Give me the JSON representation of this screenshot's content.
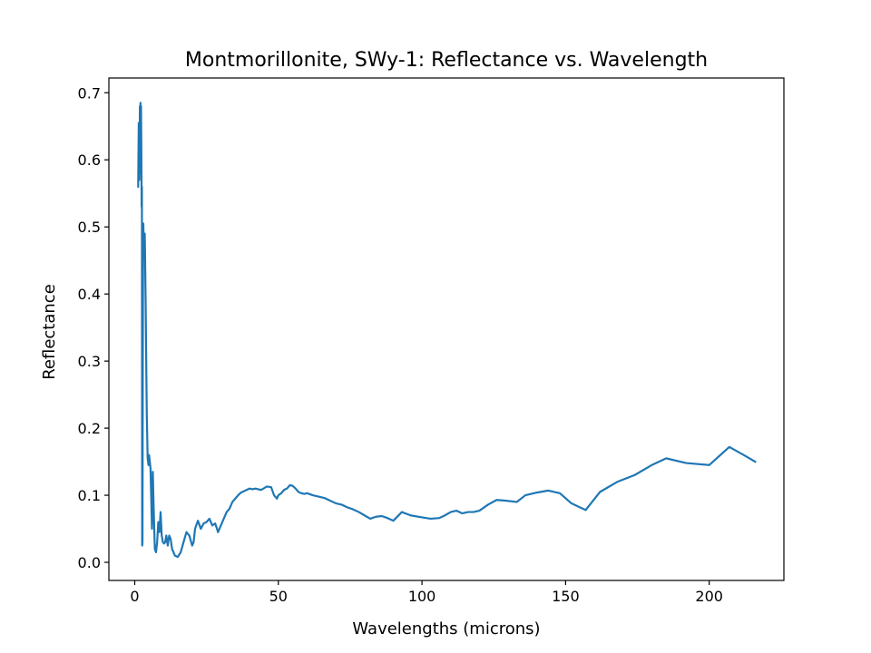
{
  "chart_data": {
    "type": "line",
    "title": "Montmorillonite, SWy-1: Reflectance vs. Wavelength",
    "xlabel": "Wavelengths (microns)",
    "ylabel": "Reflectance",
    "xlim": [
      -9,
      226
    ],
    "ylim": [
      -0.027,
      0.722
    ],
    "xticks": [
      0,
      50,
      100,
      150,
      200
    ],
    "yticks": [
      0.0,
      0.1,
      0.2,
      0.3,
      0.4,
      0.5,
      0.6,
      0.7
    ],
    "xtick_labels": [
      "0",
      "50",
      "100",
      "150",
      "200"
    ],
    "ytick_labels": [
      "0.0",
      "0.1",
      "0.2",
      "0.3",
      "0.4",
      "0.5",
      "0.6",
      "0.7"
    ],
    "grid": false,
    "line_color": "#1f77b4",
    "series": [
      {
        "x": [
          1.2,
          1.4,
          1.6,
          1.8,
          1.9,
          2.0,
          2.1,
          2.2,
          2.3,
          2.4,
          2.5,
          2.6,
          2.7,
          2.8,
          2.9,
          3.0,
          3.2,
          3.5,
          3.8,
          4.0,
          4.2,
          4.5,
          4.8,
          5.0,
          5.5,
          6.0,
          6.3,
          6.6,
          7.0,
          7.4,
          7.8,
          8.2,
          8.6,
          9.0,
          9.4,
          9.8,
          10.2,
          10.6,
          11.0,
          11.5,
          12.0,
          12.5,
          13.0,
          13.5,
          14.0,
          15.0,
          16.0,
          17.0,
          18.0,
          19.0,
          20.0,
          20.5,
          21.0,
          22.0,
          23.0,
          24.0,
          25.0,
          26.0,
          27.0,
          28.0,
          28.5,
          29.0,
          30.0,
          31.0,
          32.0,
          33.0,
          34.0,
          35.0,
          36.0,
          37.0,
          38.0,
          39.0,
          40.0,
          41.0,
          42.0,
          44.0,
          46.0,
          47.5,
          48.5,
          49.5,
          50.0,
          51.0,
          52.0,
          53.0,
          54.0,
          55.0,
          56.0,
          57.0,
          58.0,
          59.0,
          60.0,
          62.0,
          64.0,
          66.0,
          68.0,
          70.0,
          72.0,
          74.0,
          76.0,
          78.0,
          80.0,
          82.0,
          84.0,
          86.0,
          88.0,
          90.0,
          93.0,
          96.0,
          100.0,
          103.0,
          106.0,
          108.0,
          110.0,
          112.0,
          114.0,
          116.0,
          118.0,
          120.0,
          123.0,
          126.0,
          129.0,
          133.0,
          136.0,
          140.0,
          144.0,
          148.0,
          152.0,
          157.0,
          162.0,
          168.0,
          174.0,
          180.0,
          185.0,
          192.0,
          200.0,
          207.0,
          212.0,
          216.0
        ],
        "values": [
          0.56,
          0.655,
          0.57,
          0.68,
          0.6,
          0.685,
          0.58,
          0.68,
          0.62,
          0.53,
          0.56,
          0.025,
          0.03,
          0.28,
          0.45,
          0.505,
          0.46,
          0.49,
          0.39,
          0.3,
          0.22,
          0.155,
          0.145,
          0.16,
          0.14,
          0.05,
          0.135,
          0.08,
          0.02,
          0.015,
          0.03,
          0.06,
          0.045,
          0.075,
          0.04,
          0.03,
          0.028,
          0.03,
          0.04,
          0.025,
          0.04,
          0.035,
          0.02,
          0.015,
          0.01,
          0.008,
          0.015,
          0.03,
          0.045,
          0.04,
          0.025,
          0.03,
          0.05,
          0.062,
          0.05,
          0.058,
          0.06,
          0.065,
          0.055,
          0.058,
          0.052,
          0.045,
          0.055,
          0.065,
          0.075,
          0.08,
          0.09,
          0.095,
          0.1,
          0.104,
          0.106,
          0.108,
          0.11,
          0.109,
          0.11,
          0.108,
          0.113,
          0.112,
          0.1,
          0.095,
          0.1,
          0.103,
          0.108,
          0.11,
          0.115,
          0.114,
          0.11,
          0.105,
          0.103,
          0.102,
          0.103,
          0.1,
          0.098,
          0.096,
          0.092,
          0.088,
          0.086,
          0.082,
          0.079,
          0.075,
          0.07,
          0.065,
          0.068,
          0.069,
          0.066,
          0.062,
          0.075,
          0.07,
          0.067,
          0.065,
          0.066,
          0.07,
          0.075,
          0.077,
          0.073,
          0.075,
          0.075,
          0.077,
          0.086,
          0.093,
          0.092,
          0.09,
          0.1,
          0.104,
          0.107,
          0.103,
          0.088,
          0.078,
          0.105,
          0.12,
          0.13,
          0.145,
          0.155,
          0.148,
          0.145,
          0.172,
          0.16,
          0.15
        ]
      }
    ]
  }
}
